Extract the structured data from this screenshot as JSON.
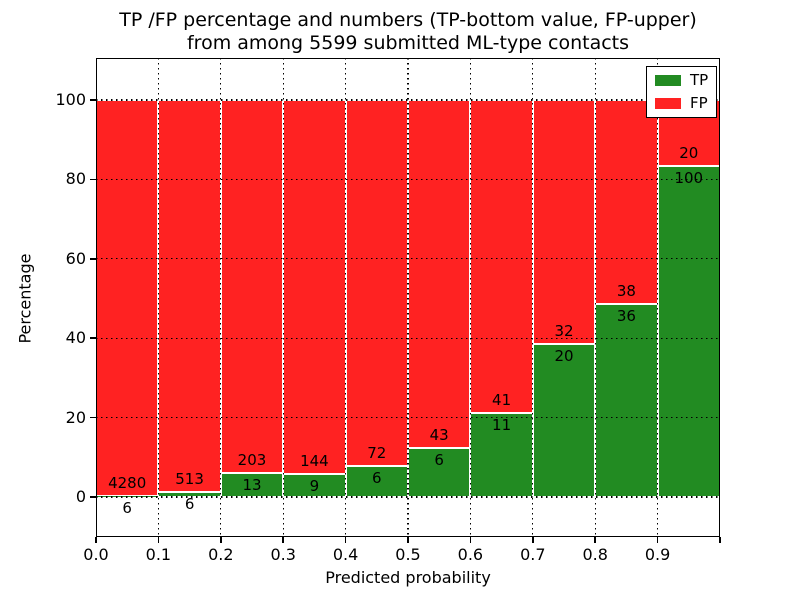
{
  "figure": {
    "title_line1": "TP /FP percentage and numbers (TP-bottom value, FP-upper)",
    "title_line2": "from among 5599 submitted ML-type contacts"
  },
  "axes": {
    "xlabel": "Predicted probability",
    "ylabel": "Percentage"
  },
  "legend": {
    "position": "upper right",
    "entries": [
      {
        "label": "TP",
        "color": "#228b22"
      },
      {
        "label": "FP",
        "color": "#ff2222"
      }
    ]
  },
  "chart_data": {
    "type": "bar",
    "mode": "stacked-percentage",
    "title": "TP /FP percentage and numbers (TP-bottom value, FP-upper) from among 5599 submitted ML-type contacts",
    "xlabel": "Predicted probability",
    "ylabel": "Percentage",
    "x_tick_labels": [
      "0.0",
      "0.1",
      "0.2",
      "0.3",
      "0.4",
      "0.5",
      "0.6",
      "0.7",
      "0.8",
      "0.9"
    ],
    "y_ticks": [
      0,
      20,
      40,
      60,
      80,
      100
    ],
    "xlim": [
      0.0,
      1.0
    ],
    "ylim": [
      -10,
      110
    ],
    "bin_width": 0.1,
    "grid": "dotted",
    "legend_position": "upper right",
    "total_contacts": 5599,
    "categories": [
      "0.0-0.1",
      "0.1-0.2",
      "0.2-0.3",
      "0.3-0.4",
      "0.4-0.5",
      "0.5-0.6",
      "0.6-0.7",
      "0.7-0.8",
      "0.8-0.9",
      "0.9-1.0"
    ],
    "series": [
      {
        "name": "TP",
        "color": "#228b22",
        "counts": [
          6,
          6,
          13,
          9,
          6,
          6,
          11,
          20,
          36,
          100
        ],
        "percent": [
          0.14,
          1.16,
          6.02,
          5.88,
          7.69,
          12.24,
          21.15,
          38.46,
          48.65,
          83.33
        ]
      },
      {
        "name": "FP",
        "color": "#ff2222",
        "counts": [
          4280,
          513,
          203,
          144,
          72,
          43,
          41,
          32,
          38,
          20
        ],
        "percent": [
          99.86,
          98.84,
          93.98,
          94.12,
          92.31,
          87.76,
          78.85,
          61.54,
          51.35,
          16.67
        ]
      }
    ]
  }
}
